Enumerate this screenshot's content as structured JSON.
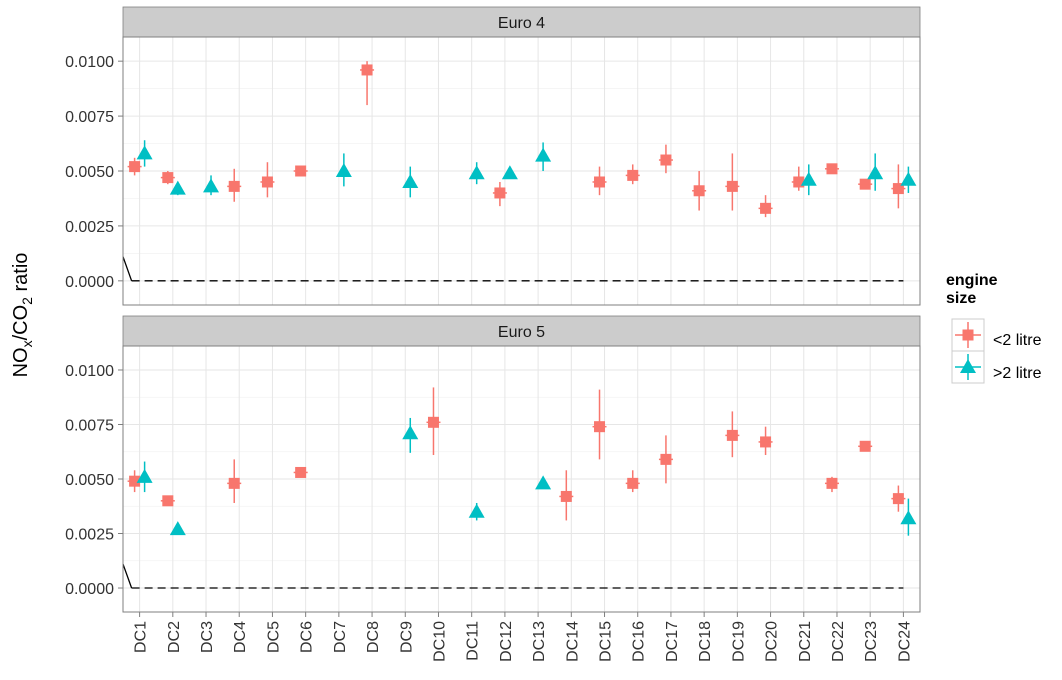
{
  "chart_data": {
    "type": "scatter",
    "ylabel": "NOx/CO2 ratio",
    "ylabel_parts": {
      "a": "NO",
      "b": "x",
      "c": "/CO",
      "d": "2",
      "e": " ratio"
    },
    "categories": [
      "DC1",
      "DC2",
      "DC3",
      "DC4",
      "DC5",
      "DC6",
      "DC7",
      "DC8",
      "DC9",
      "DC10",
      "DC11",
      "DC12",
      "DC13",
      "DC14",
      "DC15",
      "DC16",
      "DC17",
      "DC18",
      "DC19",
      "DC20",
      "DC21",
      "DC22",
      "DC23",
      "DC24"
    ],
    "ylim": [
      -0.0011,
      0.0111
    ],
    "y_ticks": [
      0,
      0.0025,
      0.005,
      0.0075,
      0.01
    ],
    "y_tick_labels": [
      "0.0000",
      "0.0025",
      "0.0050",
      "0.0075",
      "0.0100"
    ],
    "reference_line": 0,
    "grid": true,
    "legend": {
      "title_line1": "engine",
      "title_line2": "size",
      "placement": "right",
      "entries": [
        {
          "label": "<2 litre",
          "color": "#F8766D",
          "shape": "square"
        },
        {
          "label": ">2 litre",
          "color": "#00BFC4",
          "shape": "triangle"
        }
      ]
    },
    "panels": [
      {
        "title": "Euro 4",
        "series": [
          {
            "name": "<2 litre",
            "points": [
              {
                "x": "DC1",
                "y": 0.0052,
                "lo": 0.0048,
                "hi": 0.0056
              },
              {
                "x": "DC2",
                "y": 0.0047,
                "lo": 0.0044,
                "hi": 0.005
              },
              {
                "x": "DC4",
                "y": 0.0043,
                "lo": 0.0036,
                "hi": 0.0051
              },
              {
                "x": "DC5",
                "y": 0.0045,
                "lo": 0.0038,
                "hi": 0.0054
              },
              {
                "x": "DC6",
                "y": 0.005,
                "lo": 0.0048,
                "hi": 0.0052
              },
              {
                "x": "DC8",
                "y": 0.0096,
                "lo": 0.008,
                "hi": 0.01
              },
              {
                "x": "DC12",
                "y": 0.004,
                "lo": 0.0034,
                "hi": 0.0045
              },
              {
                "x": "DC15",
                "y": 0.0045,
                "lo": 0.0039,
                "hi": 0.0052
              },
              {
                "x": "DC16",
                "y": 0.0048,
                "lo": 0.0044,
                "hi": 0.0053
              },
              {
                "x": "DC17",
                "y": 0.0055,
                "lo": 0.0049,
                "hi": 0.0062
              },
              {
                "x": "DC18",
                "y": 0.0041,
                "lo": 0.0032,
                "hi": 0.005
              },
              {
                "x": "DC19",
                "y": 0.0043,
                "lo": 0.0032,
                "hi": 0.0058
              },
              {
                "x": "DC20",
                "y": 0.0033,
                "lo": 0.0029,
                "hi": 0.0039
              },
              {
                "x": "DC21",
                "y": 0.0045,
                "lo": 0.0041,
                "hi": 0.0052
              },
              {
                "x": "DC22",
                "y": 0.0051,
                "lo": 0.0049,
                "hi": 0.0053
              },
              {
                "x": "DC23",
                "y": 0.0044,
                "lo": 0.0042,
                "hi": 0.0046
              },
              {
                "x": "DC24",
                "y": 0.0042,
                "lo": 0.0033,
                "hi": 0.0053
              }
            ]
          },
          {
            "name": ">2 litre",
            "points": [
              {
                "x": "DC1",
                "y": 0.0058,
                "lo": 0.0052,
                "hi": 0.0064
              },
              {
                "x": "DC2",
                "y": 0.0042,
                "lo": 0.0039,
                "hi": 0.0044
              },
              {
                "x": "DC3",
                "y": 0.0043,
                "lo": 0.0039,
                "hi": 0.0048
              },
              {
                "x": "DC7",
                "y": 0.005,
                "lo": 0.0043,
                "hi": 0.0058
              },
              {
                "x": "DC9",
                "y": 0.0045,
                "lo": 0.0038,
                "hi": 0.0052
              },
              {
                "x": "DC11",
                "y": 0.0049,
                "lo": 0.0044,
                "hi": 0.0054
              },
              {
                "x": "DC12",
                "y": 0.0049,
                "lo": 0.0047,
                "hi": 0.0051
              },
              {
                "x": "DC13",
                "y": 0.0057,
                "lo": 0.005,
                "hi": 0.0063
              },
              {
                "x": "DC21",
                "y": 0.0046,
                "lo": 0.0039,
                "hi": 0.0053
              },
              {
                "x": "DC23",
                "y": 0.0049,
                "lo": 0.0041,
                "hi": 0.0058
              },
              {
                "x": "DC24",
                "y": 0.0046,
                "lo": 0.004,
                "hi": 0.0052
              }
            ]
          }
        ]
      },
      {
        "title": "Euro 5",
        "series": [
          {
            "name": "<2 litre",
            "points": [
              {
                "x": "DC1",
                "y": 0.0049,
                "lo": 0.0044,
                "hi": 0.0054
              },
              {
                "x": "DC2",
                "y": 0.004,
                "lo": 0.0038,
                "hi": 0.0042
              },
              {
                "x": "DC4",
                "y": 0.0048,
                "lo": 0.0039,
                "hi": 0.0059
              },
              {
                "x": "DC6",
                "y": 0.0053,
                "lo": 0.0051,
                "hi": 0.0055
              },
              {
                "x": "DC10",
                "y": 0.0076,
                "lo": 0.0061,
                "hi": 0.0092
              },
              {
                "x": "DC14",
                "y": 0.0042,
                "lo": 0.0031,
                "hi": 0.0054
              },
              {
                "x": "DC15",
                "y": 0.0074,
                "lo": 0.0059,
                "hi": 0.0091
              },
              {
                "x": "DC16",
                "y": 0.0048,
                "lo": 0.0044,
                "hi": 0.0054
              },
              {
                "x": "DC17",
                "y": 0.0059,
                "lo": 0.0048,
                "hi": 0.007
              },
              {
                "x": "DC19",
                "y": 0.007,
                "lo": 0.006,
                "hi": 0.0081
              },
              {
                "x": "DC20",
                "y": 0.0067,
                "lo": 0.0061,
                "hi": 0.0074
              },
              {
                "x": "DC22",
                "y": 0.0048,
                "lo": 0.0044,
                "hi": 0.0051
              },
              {
                "x": "DC23",
                "y": 0.0065,
                "lo": 0.0063,
                "hi": 0.0067
              },
              {
                "x": "DC24",
                "y": 0.0041,
                "lo": 0.0035,
                "hi": 0.0047
              }
            ]
          },
          {
            "name": ">2 litre",
            "points": [
              {
                "x": "DC1",
                "y": 0.0051,
                "lo": 0.0044,
                "hi": 0.0058
              },
              {
                "x": "DC2",
                "y": 0.0027,
                "lo": 0.0026,
                "hi": 0.0029
              },
              {
                "x": "DC9",
                "y": 0.0071,
                "lo": 0.0062,
                "hi": 0.0078
              },
              {
                "x": "DC11",
                "y": 0.0035,
                "lo": 0.0031,
                "hi": 0.0039
              },
              {
                "x": "DC13",
                "y": 0.0048,
                "lo": 0.0046,
                "hi": 0.005
              },
              {
                "x": "DC24",
                "y": 0.0032,
                "lo": 0.0024,
                "hi": 0.0041
              }
            ]
          }
        ]
      }
    ]
  }
}
